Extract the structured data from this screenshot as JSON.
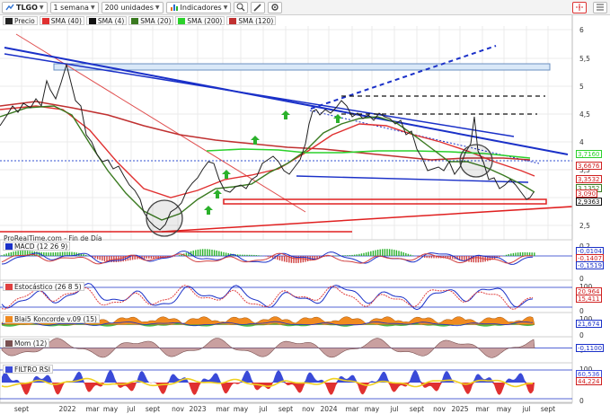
{
  "toolbar": {
    "ticker": "TLGO",
    "period": "1 semana",
    "units": "200 unidades",
    "indicators": "Indicadores"
  },
  "legend": [
    {
      "label": "Precio",
      "color": "#222222"
    },
    {
      "label": "SMA (40)",
      "color": "#e03030"
    },
    {
      "label": "SMA (4)",
      "color": "#111111"
    },
    {
      "label": "SMA (20)",
      "color": "#3a7a20"
    },
    {
      "label": "SMA (200)",
      "color": "#2bd12b"
    },
    {
      "label": "SMA (120)",
      "color": "#c03030"
    }
  ],
  "watermark": "ProRealTime.com - Fin de Día",
  "price_axis": [
    "6",
    "5,5",
    "5",
    "4,5",
    "4",
    "3,5",
    "3",
    "2,5"
  ],
  "price_tags": [
    {
      "value": "3,7160",
      "color": "#2bd12b"
    },
    {
      "value": "3,6676",
      "color": "#d02020"
    },
    {
      "value": "3,3532",
      "color": "#d02020"
    },
    {
      "value": "3,1352",
      "color": "#3a7a20"
    },
    {
      "value": "3,090",
      "color": "#d02020"
    },
    {
      "value": "2,9363",
      "color": "#111111"
    }
  ],
  "time_axis": [
    "sept",
    "2022",
    "mar",
    "may",
    "jul",
    "sept",
    "nov",
    "2023",
    "mar",
    "may",
    "jul",
    "sept",
    "nov",
    "2024",
    "mar",
    "may",
    "jul",
    "sept",
    "nov",
    "2025",
    "mar",
    "may",
    "jul",
    "sept"
  ],
  "indicators": [
    {
      "name": "MACD (12 26 9)",
      "axis": [
        "0,2",
        "0"
      ],
      "tags": [
        "-0,0104",
        "-0,1407",
        "-0,1519"
      ]
    },
    {
      "name": "Estocástico (26 8 5)",
      "axis": [
        "100",
        "0"
      ],
      "tags": [
        "20,964",
        "15,411"
      ]
    },
    {
      "name": "Blai5 Koncorde v.09 (15)",
      "axis": [
        "100",
        "0"
      ],
      "tags": [
        "21,674"
      ]
    },
    {
      "name": "Mom (12)",
      "axis": [
        "0"
      ],
      "tags": [
        "-0,1100"
      ]
    },
    {
      "name": "FILTRO RSI",
      "axis": [
        "100",
        "0"
      ],
      "tags": [
        "60,536",
        "44,224"
      ]
    }
  ]
}
